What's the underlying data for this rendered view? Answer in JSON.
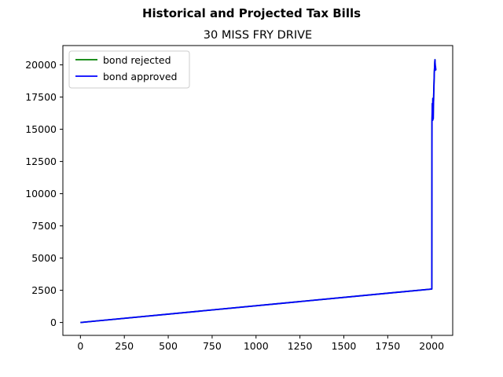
{
  "chart_data": {
    "type": "line",
    "suptitle": "Historical and Projected Tax Bills",
    "title": "30 MISS FRY DRIVE",
    "xlabel": "",
    "ylabel": "",
    "xlim": [
      -100,
      2120
    ],
    "ylim": [
      -1000,
      21500
    ],
    "xticks": [
      0,
      250,
      500,
      750,
      1000,
      1250,
      1500,
      1750,
      2000
    ],
    "yticks": [
      0,
      2500,
      5000,
      7500,
      10000,
      12500,
      15000,
      17500,
      20000
    ],
    "grid": false,
    "legend_position": "upper-left",
    "series": [
      {
        "name": "bond rejected",
        "color": "#008000",
        "x": [
          0,
          2001,
          2002,
          2003,
          2004,
          2005,
          2006,
          2007,
          2008,
          2009,
          2010,
          2011,
          2012,
          2013,
          2014,
          2015,
          2016,
          2017,
          2018,
          2019,
          2020,
          2021,
          2022,
          2023,
          2024
        ],
        "y": [
          0,
          2600,
          15600,
          16200,
          17000,
          16400,
          15700,
          17400,
          16300,
          15800,
          16800,
          17200,
          17800,
          18300,
          18800,
          19300,
          19600,
          19900,
          20200,
          20400,
          20100,
          19800,
          19900,
          19600,
          19700
        ]
      },
      {
        "name": "bond approved",
        "color": "#0000ff",
        "x": [
          0,
          2001,
          2002,
          2003,
          2004,
          2005,
          2006,
          2007,
          2008,
          2009,
          2010,
          2011,
          2012,
          2013,
          2014,
          2015,
          2016,
          2017,
          2018,
          2019,
          2020,
          2021,
          2022,
          2023,
          2024
        ],
        "y": [
          0,
          2600,
          15600,
          16200,
          17000,
          16400,
          15700,
          17400,
          16300,
          15800,
          16800,
          17200,
          17800,
          18300,
          18800,
          19300,
          19600,
          19900,
          20200,
          20400,
          20100,
          19800,
          19900,
          19600,
          19700
        ]
      }
    ]
  }
}
